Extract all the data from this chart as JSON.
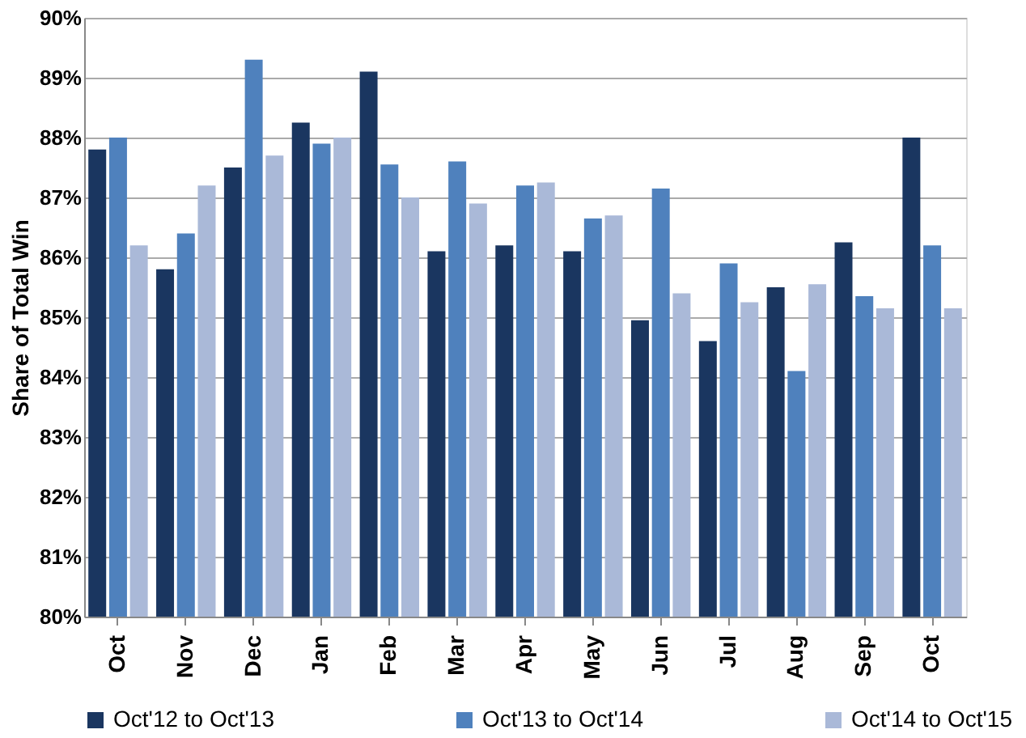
{
  "chart_data": {
    "type": "bar",
    "ylabel": "Share of Total Win",
    "categories": [
      "Oct",
      "Nov",
      "Dec",
      "Jan",
      "Feb",
      "Mar",
      "Apr",
      "May",
      "Jun",
      "Jul",
      "Aug",
      "Sep",
      "Oct"
    ],
    "series": [
      {
        "name": "Oct'12 to Oct'13",
        "color": "#1a3660",
        "values": [
          87.8,
          85.8,
          87.5,
          88.25,
          89.1,
          86.1,
          86.2,
          86.1,
          84.95,
          84.6,
          85.5,
          86.25,
          88.0
        ]
      },
      {
        "name": "Oct'13 to Oct'14",
        "color": "#4f81bd",
        "values": [
          88.0,
          86.4,
          89.3,
          87.9,
          87.55,
          87.6,
          87.2,
          86.65,
          87.15,
          85.9,
          84.1,
          85.35,
          86.2
        ]
      },
      {
        "name": "Oct'14 to Oct'15",
        "color": "#aab9d8",
        "values": [
          86.2,
          87.2,
          87.7,
          88.0,
          87.0,
          86.9,
          87.25,
          86.7,
          85.4,
          85.25,
          85.55,
          85.15,
          85.15
        ]
      }
    ],
    "ylim": [
      80,
      90
    ],
    "yticks": [
      {
        "value": 80,
        "label": "80%"
      },
      {
        "value": 81,
        "label": "81%"
      },
      {
        "value": 82,
        "label": "82%"
      },
      {
        "value": 83,
        "label": "83%"
      },
      {
        "value": 84,
        "label": "84%"
      },
      {
        "value": 85,
        "label": "85%"
      },
      {
        "value": 86,
        "label": "86%"
      },
      {
        "value": 87,
        "label": "87%"
      },
      {
        "value": 88,
        "label": "88%"
      },
      {
        "value": 89,
        "label": "89%"
      },
      {
        "value": 90,
        "label": "90%"
      }
    ],
    "grid": "y",
    "legend": "bottom"
  }
}
